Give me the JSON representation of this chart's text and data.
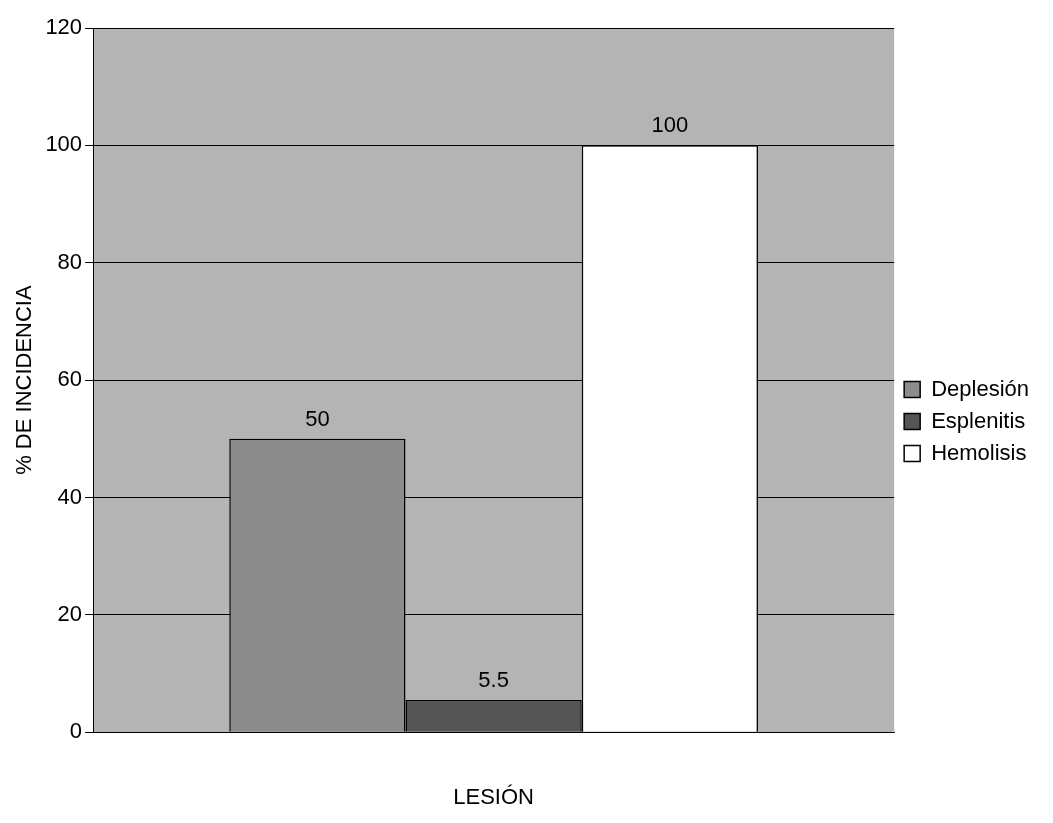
{
  "chart_data": {
    "type": "bar",
    "xlabel": "LESIÓN",
    "ylabel": "% DE INCIDENCIA",
    "categories": [
      null
    ],
    "series": [
      {
        "name": "Deplesión",
        "color": "#8c8c8c",
        "values": [
          50
        ]
      },
      {
        "name": "Esplenitis",
        "color": "#555555",
        "values": [
          5.5
        ]
      },
      {
        "name": "Hemolisis",
        "color": "#ffffff",
        "values": [
          100
        ]
      }
    ],
    "ylim": [
      0,
      120
    ],
    "yticks": [
      0,
      20,
      40,
      60,
      80,
      100,
      120
    ],
    "grid": "y",
    "legend": "right",
    "data_labels": true
  }
}
